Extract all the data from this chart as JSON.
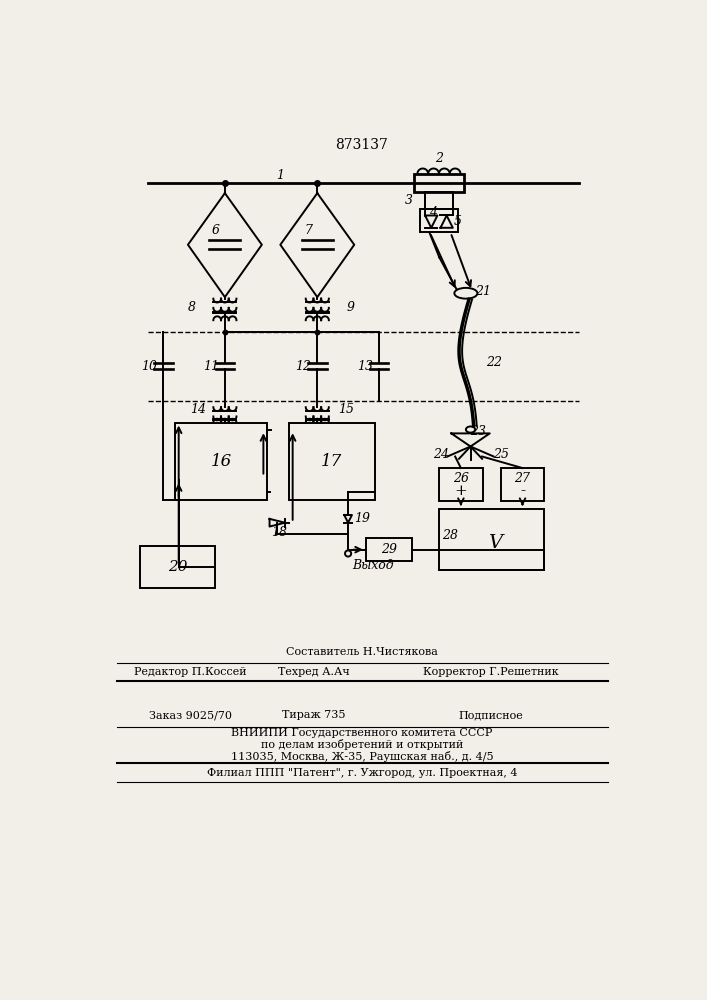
{
  "title": "873137",
  "bg_color": "#f2efe9",
  "footer": {
    "line1": "Составитель Н.Чистякова",
    "line2_l": "Редактор П.Коссей",
    "line2_m": "Техред А.Ач",
    "line2_r": "Корректор Г.Решетник",
    "line3_l": "Заказ 9025/70",
    "line3_m": "Тираж 735",
    "line3_r": "Подписное",
    "line4": "ВНИИПИ Государственного комитета СССР",
    "line5": "по делам изобретений и открытий",
    "line6": "113035, Москва, Ж-35, Раушская наб., д. 4/5",
    "line7": "Филиал ППП \"Патент\", г. Ужгород, ул. Проектная, 4"
  }
}
